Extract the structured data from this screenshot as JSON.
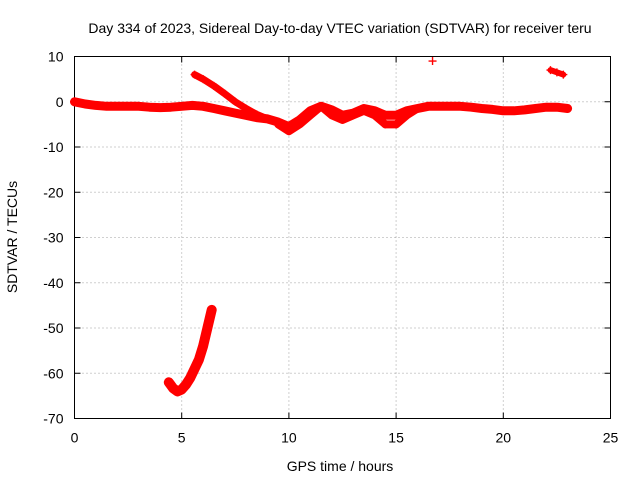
{
  "chart_data": {
    "type": "scatter",
    "title": "Day 334 of 2023, Sidereal Day-to-day VTEC variation (SDTVAR) for receiver teru",
    "xlabel": "GPS time / hours",
    "ylabel": "SDTVAR / TECUs",
    "xlim": [
      0,
      25
    ],
    "ylim": [
      -70,
      10
    ],
    "xticks": [
      0,
      5,
      10,
      15,
      20,
      25
    ],
    "yticks": [
      10,
      0,
      -10,
      -20,
      -30,
      -40,
      -50,
      -60,
      -70
    ],
    "grid": true,
    "marker_color": "#ff0000",
    "series": [
      {
        "name": "main-baseline",
        "x": [
          0,
          0.5,
          1,
          1.5,
          2,
          2.5,
          3,
          3.5,
          4,
          4.5,
          5,
          5.5,
          6,
          6.5,
          7,
          7.5,
          8,
          8.5,
          9,
          9.5,
          10,
          10.5,
          11,
          11.5,
          12,
          12.5,
          13,
          13.5,
          14,
          14.5,
          15,
          15.5,
          16,
          16.5,
          17,
          17.5,
          18,
          18.5,
          19,
          19.5,
          20,
          20.5,
          21,
          21.5,
          22,
          22.5,
          23
        ],
        "y": [
          0,
          -0.5,
          -0.8,
          -1,
          -1,
          -1,
          -1,
          -1.2,
          -1.3,
          -1.2,
          -1,
          -0.8,
          -1,
          -1.5,
          -2,
          -2.5,
          -3,
          -3.5,
          -3.8,
          -4.5,
          -5.5,
          -4,
          -2,
          -1,
          -1.8,
          -3,
          -2.5,
          -1.5,
          -2,
          -3,
          -3,
          -2,
          -1.5,
          -1,
          -1,
          -1,
          -1,
          -1.2,
          -1.5,
          -1.7,
          -2,
          -2,
          -1.8,
          -1.5,
          -1.2,
          -1.2,
          -1.5
        ]
      },
      {
        "name": "descending-track",
        "x": [
          5.6,
          6,
          6.5,
          7,
          7.5,
          8,
          8.5,
          9,
          9.5,
          10
        ],
        "y": [
          6,
          5,
          3.5,
          1.8,
          0,
          -1.5,
          -2.8,
          -3.8,
          -4.5,
          -5.5
        ]
      },
      {
        "name": "midday-dips",
        "x": [
          9.5,
          10,
          10.5,
          11,
          11.5,
          12,
          12.5,
          13,
          13.5,
          14,
          14.5,
          15,
          15.5,
          16
        ],
        "y": [
          -5,
          -6.5,
          -5,
          -3,
          -1,
          -3,
          -4,
          -3,
          -2,
          -3,
          -5,
          -5,
          -3,
          -1.5
        ]
      },
      {
        "name": "negative-arc",
        "x": [
          4.4,
          4.6,
          4.8,
          5.0,
          5.2,
          5.4,
          5.6,
          5.8,
          6.0,
          6.2,
          6.4
        ],
        "y": [
          -62,
          -63.3,
          -64,
          -63.6,
          -62.5,
          -61,
          -59,
          -57,
          -54,
          -50,
          -46
        ]
      },
      {
        "name": "late-segment",
        "x": [
          22.2,
          22.5,
          22.8
        ],
        "y": [
          7,
          6.5,
          6
        ]
      },
      {
        "name": "outlier",
        "x": [
          16.7
        ],
        "y": [
          9
        ]
      }
    ]
  }
}
